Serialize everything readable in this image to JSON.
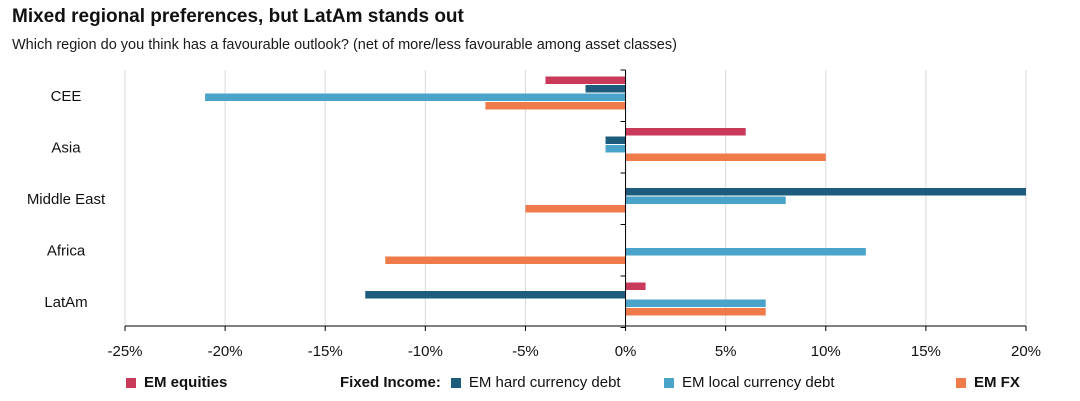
{
  "header": {
    "title": "Mixed regional preferences, but LatAm stands out",
    "subtitle": "Which region do you think has a favourable outlook? (net of more/less favourable among asset classes)"
  },
  "legend": {
    "group_prefix": "Fixed Income:"
  },
  "colors": {
    "em_equities": "#c8395a",
    "em_hard": "#1d5c7c",
    "em_local": "#4aa3c8",
    "em_fx": "#ef7b4b",
    "grid": "#d9d9d9",
    "axis": "#000000"
  },
  "chart_data": {
    "type": "bar",
    "orientation": "horizontal",
    "categories": [
      "CEE",
      "Asia",
      "Middle East",
      "Africa",
      "LatAm"
    ],
    "series": [
      {
        "name": "EM equities",
        "values": [
          -4,
          6,
          0,
          0,
          1
        ]
      },
      {
        "name": "EM hard currency debt",
        "values": [
          -2,
          -1,
          20,
          0,
          -13
        ]
      },
      {
        "name": "EM local currency debt",
        "values": [
          -21,
          -1,
          8,
          12,
          7
        ]
      },
      {
        "name": "EM FX",
        "values": [
          -7,
          10,
          -5,
          -12,
          7
        ]
      }
    ],
    "xlim": [
      -25,
      20
    ],
    "xticks": [
      -25,
      -20,
      -15,
      -10,
      -5,
      0,
      5,
      10,
      15,
      20
    ],
    "xtick_labels": [
      "-25%",
      "-20%",
      "-15%",
      "-10%",
      "-5%",
      "0%",
      "5%",
      "10%",
      "15%",
      "20%"
    ],
    "grid": "vertical",
    "legend_position": "bottom"
  }
}
